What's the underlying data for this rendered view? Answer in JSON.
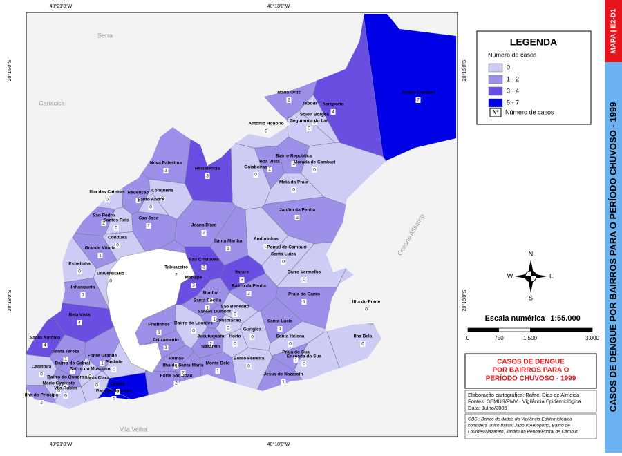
{
  "map": {
    "coords": {
      "top": [
        "40°21'0\"W",
        "40°18'0\"W"
      ],
      "bottom": [
        "40°21'0\"W",
        "40°18'0\"W"
      ],
      "left": [
        "20°15'0\"S",
        "20°18'0\"S"
      ],
      "right": [
        "20°15'0\"S",
        "20°18'0\"S"
      ]
    },
    "places": [
      "Serra",
      "Cariacica",
      "Vila Velha",
      "Oceano Atlântico"
    ],
    "neighborhoods": [
      {
        "name": "Maria Ortiz",
        "cases": 2
      },
      {
        "name": "Aeroporto",
        "cases": 4
      },
      {
        "name": "Jardim Camburi",
        "cases": 7
      },
      {
        "name": "Solon Borges",
        "cases": 0
      },
      {
        "name": "Seguranca do Lar",
        "cases": 0
      },
      {
        "name": "Antonio Honorio",
        "cases": 0
      },
      {
        "name": "Goiabeiras",
        "cases": 0
      },
      {
        "name": "Boa Vista",
        "cases": 1
      },
      {
        "name": "Bairro Republica",
        "cases": 2
      },
      {
        "name": "Morada de Camburi",
        "cases": 0
      },
      {
        "name": "Mata da Praia",
        "cases": 0
      },
      {
        "name": "Jardim da Penha",
        "cases": 2
      },
      {
        "name": "Andorinhas",
        "cases": 0
      },
      {
        "name": "Santa Luiza",
        "cases": 0
      },
      {
        "name": "Nova Palestina",
        "cases": 1
      },
      {
        "name": "Resistencia",
        "cases": 3
      },
      {
        "name": "Conquista",
        "cases": 0
      },
      {
        "name": "Redencao",
        "cases": 1
      },
      {
        "name": "Santo Andre",
        "cases": 0
      },
      {
        "name": "Ilha das Caieiras",
        "cases": 0
      },
      {
        "name": "Sao Pedro",
        "cases": 2
      },
      {
        "name": "Santos Reis",
        "cases": 0
      },
      {
        "name": "Sao Jose",
        "cases": 2
      },
      {
        "name": "Joana D'arc",
        "cases": 2
      },
      {
        "name": "Santa Martha",
        "cases": 1
      },
      {
        "name": "Condusa",
        "cases": 0
      },
      {
        "name": "Grande Vitoria",
        "cases": 1
      },
      {
        "name": "Estrelinha",
        "cases": 0
      },
      {
        "name": "Universitario",
        "cases": 0
      },
      {
        "name": "Inhangueta",
        "cases": 1
      },
      {
        "name": "Sao Cristovao",
        "cases": 3
      },
      {
        "name": "Tabuazeiro",
        "cases": 2
      },
      {
        "name": "Maruipe",
        "cases": 3
      },
      {
        "name": "Itarare",
        "cases": 3
      },
      {
        "name": "Bairro da Penha",
        "cases": 2
      },
      {
        "name": "Bonfim",
        "cases": 1
      },
      {
        "name": "Santa Cecilia",
        "cases": 1
      },
      {
        "name": "Sao Benedito",
        "cases": 0
      },
      {
        "name": "Santos Dumont",
        "cases": 1
      },
      {
        "name": "Barro Vermelho",
        "cases": 0
      },
      {
        "name": "Praia do Canto",
        "cases": 1
      },
      {
        "name": "Ilha do Frade",
        "cases": 0
      },
      {
        "name": "Bela Vista",
        "cases": 4
      },
      {
        "name": "Santo Antonio",
        "cases": 4
      },
      {
        "name": "Fradinhos",
        "cases": 1
      },
      {
        "name": "Bairro de Lourdes",
        "cases": 0
      },
      {
        "name": "Consolacao",
        "cases": 0
      },
      {
        "name": "Gurigica",
        "cases": 0
      },
      {
        "name": "Santa Lucia",
        "cases": 1
      },
      {
        "name": "Santa Helena",
        "cases": 0
      },
      {
        "name": "Ilha Bela",
        "cases": 0
      },
      {
        "name": "Cruzamento",
        "cases": 1
      },
      {
        "name": "Jucutuquara",
        "cases": 2
      },
      {
        "name": "Horto",
        "cases": 0
      },
      {
        "name": "Santa Tereza",
        "cases": 1
      },
      {
        "name": "Romao",
        "cases": 1
      },
      {
        "name": "Ilha de Santa Maria",
        "cases": 2
      },
      {
        "name": "Monte Belo",
        "cases": 1
      },
      {
        "name": "Bento Ferreira",
        "cases": 0
      },
      {
        "name": "Praia do Sua",
        "cases": 1
      },
      {
        "name": "Enseada do Sua",
        "cases": 0
      },
      {
        "name": "Jesus de Nazareth",
        "cases": 1
      },
      {
        "name": "Forte Sao Joao",
        "cases": 2
      },
      {
        "name": "Caratoira",
        "cases": 0
      },
      {
        "name": "Bairro do Cabral",
        "cases": 1
      },
      {
        "name": "Fonte Grande",
        "cases": 1
      },
      {
        "name": "Piedade",
        "cases": 0
      },
      {
        "name": "Bairro do Moscoso",
        "cases": 0
      },
      {
        "name": "Bairro do Quadro",
        "cases": 1
      },
      {
        "name": "Santa Clara",
        "cases": 0
      },
      {
        "name": "Mario Cypreste",
        "cases": 0
      },
      {
        "name": "Vila Rubim",
        "cases": 0
      },
      {
        "name": "Centro",
        "cases": 6
      },
      {
        "name": "Parque Moscoso",
        "cases": 5
      },
      {
        "name": "Ilha do Principe",
        "cases": 2
      }
    ],
    "extra_labels": [
      "Jabour",
      "Pontal de Camburi",
      "Nazareth"
    ]
  },
  "legend": {
    "title": "LEGENDA",
    "subtitle": "Número de casos",
    "classes": [
      {
        "label": "0",
        "color": "#ccccf4"
      },
      {
        "label": "1 - 2",
        "color": "#9c90e8"
      },
      {
        "label": "3 - 4",
        "color": "#6a4ee2"
      },
      {
        "label": "5 - 7",
        "color": "#0000e6"
      }
    ],
    "symbol": "Nº",
    "symbol_label": "Número de casos"
  },
  "compass": [
    "N",
    "S",
    "E",
    "W"
  ],
  "scale": {
    "label": "Escala numérica",
    "value": "1:55.000",
    "ticks": [
      "0",
      "750",
      "1.500",
      "3.000"
    ]
  },
  "title_lines": [
    "CASOS DE DENGUE",
    "POR BAIRROS PARA O",
    "PERÍODO CHUVOSO - 1999"
  ],
  "credits": [
    "Elaboração cartográfica: Rafael Dias de Almeida",
    "Fontes: SEMUS/PMV - Vigilância Epidemiológica",
    "Data: Julho/2006"
  ],
  "obs": [
    "OBS.: Banco de dados da Vigilância Epidemiológica",
    "considera único bairro: Jabour/Aeroporto, Bairro de",
    "Lourdes/Nazareth, Jardim da Penha/Pontal de Camburi"
  ],
  "side": {
    "code": "MAPA | E2-D1",
    "title": "CASOS DE DENGUE POR BAIRROS PARA O PERÍODO CHUVOSO - 1999"
  }
}
